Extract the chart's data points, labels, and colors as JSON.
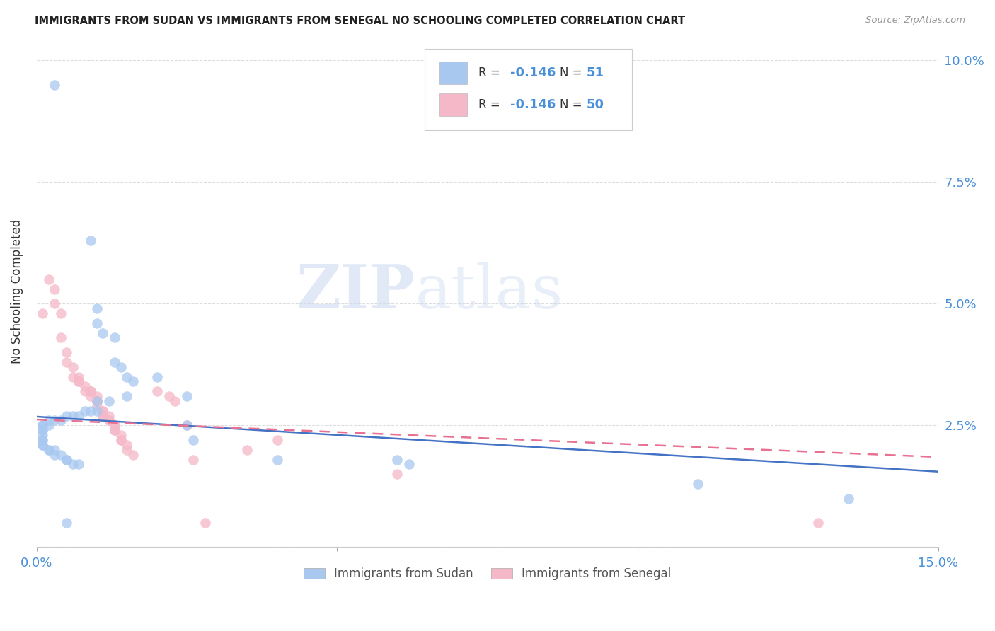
{
  "title": "IMMIGRANTS FROM SUDAN VS IMMIGRANTS FROM SENEGAL NO SCHOOLING COMPLETED CORRELATION CHART",
  "source": "Source: ZipAtlas.com",
  "tick_color": "#4a90d9",
  "ylabel": "No Schooling Completed",
  "xlim": [
    0.0,
    0.15
  ],
  "ylim": [
    0.0,
    0.105
  ],
  "watermark_zip": "ZIP",
  "watermark_atlas": "atlas",
  "legend_R_sudan": "-0.146",
  "legend_N_sudan": "51",
  "legend_R_senegal": "-0.146",
  "legend_N_senegal": "50",
  "sudan_color": "#a8c8f0",
  "senegal_color": "#f5b8c8",
  "sudan_line_color": "#4472c4",
  "senegal_line_color": "#e87090",
  "sudan_line_y0": 0.0268,
  "sudan_line_y1": 0.0155,
  "senegal_line_y0": 0.0262,
  "senegal_line_y1": 0.0185,
  "sudan_scatter": [
    [
      0.003,
      0.095
    ],
    [
      0.009,
      0.063
    ],
    [
      0.01,
      0.049
    ],
    [
      0.01,
      0.046
    ],
    [
      0.011,
      0.044
    ],
    [
      0.013,
      0.043
    ],
    [
      0.013,
      0.038
    ],
    [
      0.014,
      0.037
    ],
    [
      0.015,
      0.035
    ],
    [
      0.016,
      0.034
    ],
    [
      0.015,
      0.031
    ],
    [
      0.012,
      0.03
    ],
    [
      0.01,
      0.03
    ],
    [
      0.01,
      0.028
    ],
    [
      0.009,
      0.028
    ],
    [
      0.008,
      0.028
    ],
    [
      0.007,
      0.027
    ],
    [
      0.006,
      0.027
    ],
    [
      0.005,
      0.027
    ],
    [
      0.004,
      0.026
    ],
    [
      0.003,
      0.026
    ],
    [
      0.002,
      0.026
    ],
    [
      0.002,
      0.025
    ],
    [
      0.001,
      0.025
    ],
    [
      0.001,
      0.025
    ],
    [
      0.001,
      0.024
    ],
    [
      0.001,
      0.024
    ],
    [
      0.001,
      0.023
    ],
    [
      0.001,
      0.022
    ],
    [
      0.001,
      0.022
    ],
    [
      0.001,
      0.021
    ],
    [
      0.001,
      0.021
    ],
    [
      0.002,
      0.02
    ],
    [
      0.002,
      0.02
    ],
    [
      0.003,
      0.02
    ],
    [
      0.003,
      0.019
    ],
    [
      0.004,
      0.019
    ],
    [
      0.005,
      0.018
    ],
    [
      0.005,
      0.018
    ],
    [
      0.006,
      0.017
    ],
    [
      0.007,
      0.017
    ],
    [
      0.02,
      0.035
    ],
    [
      0.025,
      0.031
    ],
    [
      0.025,
      0.025
    ],
    [
      0.026,
      0.022
    ],
    [
      0.04,
      0.018
    ],
    [
      0.06,
      0.018
    ],
    [
      0.062,
      0.017
    ],
    [
      0.11,
      0.013
    ],
    [
      0.135,
      0.01
    ],
    [
      0.005,
      0.005
    ]
  ],
  "senegal_scatter": [
    [
      0.001,
      0.048
    ],
    [
      0.002,
      0.055
    ],
    [
      0.003,
      0.053
    ],
    [
      0.003,
      0.05
    ],
    [
      0.004,
      0.048
    ],
    [
      0.004,
      0.043
    ],
    [
      0.005,
      0.04
    ],
    [
      0.005,
      0.038
    ],
    [
      0.006,
      0.037
    ],
    [
      0.006,
      0.035
    ],
    [
      0.007,
      0.035
    ],
    [
      0.007,
      0.034
    ],
    [
      0.007,
      0.034
    ],
    [
      0.008,
      0.033
    ],
    [
      0.008,
      0.032
    ],
    [
      0.009,
      0.032
    ],
    [
      0.009,
      0.032
    ],
    [
      0.009,
      0.031
    ],
    [
      0.01,
      0.031
    ],
    [
      0.01,
      0.03
    ],
    [
      0.01,
      0.03
    ],
    [
      0.01,
      0.03
    ],
    [
      0.01,
      0.029
    ],
    [
      0.011,
      0.028
    ],
    [
      0.011,
      0.028
    ],
    [
      0.011,
      0.027
    ],
    [
      0.011,
      0.027
    ],
    [
      0.012,
      0.027
    ],
    [
      0.012,
      0.026
    ],
    [
      0.012,
      0.026
    ],
    [
      0.013,
      0.025
    ],
    [
      0.013,
      0.025
    ],
    [
      0.013,
      0.024
    ],
    [
      0.013,
      0.024
    ],
    [
      0.014,
      0.023
    ],
    [
      0.014,
      0.022
    ],
    [
      0.014,
      0.022
    ],
    [
      0.015,
      0.021
    ],
    [
      0.015,
      0.02
    ],
    [
      0.016,
      0.019
    ],
    [
      0.02,
      0.032
    ],
    [
      0.022,
      0.031
    ],
    [
      0.023,
      0.03
    ],
    [
      0.025,
      0.025
    ],
    [
      0.026,
      0.018
    ],
    [
      0.028,
      0.005
    ],
    [
      0.035,
      0.02
    ],
    [
      0.04,
      0.022
    ],
    [
      0.06,
      0.015
    ],
    [
      0.13,
      0.005
    ]
  ],
  "background_color": "#ffffff",
  "grid_color": "#dddddd"
}
